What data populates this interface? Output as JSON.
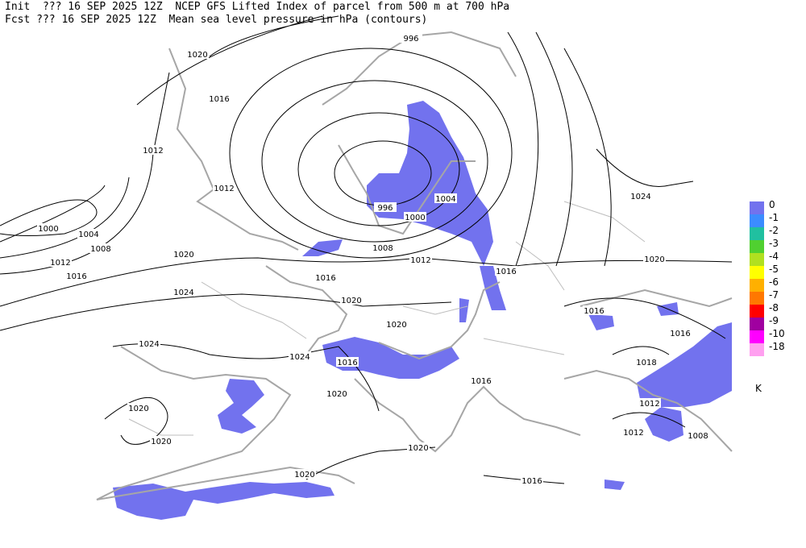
{
  "header": {
    "line1": "Init  ??? 16 SEP 2025 12Z  NCEP GFS Lifted Index of parcel from 500 m at 700 hPa",
    "line2": "Fcst ??? 16 SEP 2025 12Z  Mean sea level pressure in hPa (contours)"
  },
  "legend": {
    "unit": "K",
    "items": [
      {
        "label": "0",
        "color": "#7272ee"
      },
      {
        "label": "-1",
        "color": "#3c8cff"
      },
      {
        "label": "-2",
        "color": "#20c0a0"
      },
      {
        "label": "-3",
        "color": "#50d030"
      },
      {
        "label": "-4",
        "color": "#b0e020"
      },
      {
        "label": "-5",
        "color": "#ffff00"
      },
      {
        "label": "-6",
        "color": "#ffb000"
      },
      {
        "label": "-7",
        "color": "#ff7800"
      },
      {
        "label": "-8",
        "color": "#ff0000"
      },
      {
        "label": "-9",
        "color": "#a000a0"
      },
      {
        "label": "-10",
        "color": "#ff00ff"
      },
      {
        "label": "-18",
        "color": "#ffa0f0"
      }
    ]
  },
  "contour_labels": [
    996,
    1020,
    1016,
    1012,
    1012,
    996,
    1004,
    1000,
    1024,
    1000,
    1004,
    1008,
    1012,
    1016,
    1020,
    1008,
    1012,
    1016,
    1016,
    1020,
    1024,
    1020,
    1016,
    1016,
    1020,
    1024,
    1024,
    1016,
    1016,
    1018,
    1012,
    1020,
    1020,
    1012,
    1008,
    1020,
    1020,
    1020,
    1016
  ]
}
